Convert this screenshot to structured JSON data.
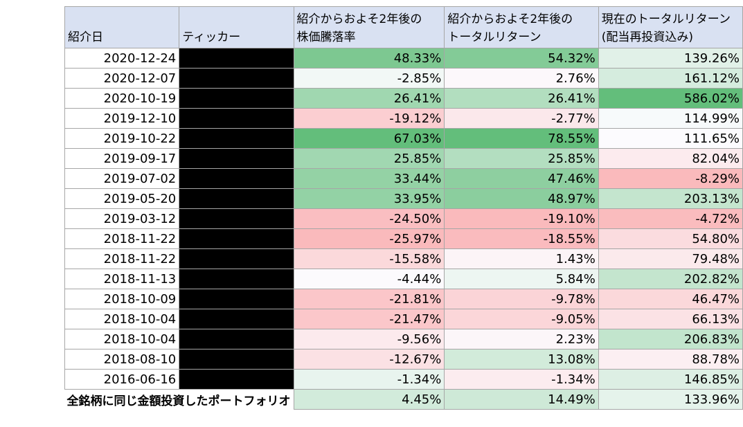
{
  "headers": {
    "date": "紹介日",
    "ticker": "ティッカー",
    "price_change": [
      "紹介からおよそ2年後の",
      "株価騰落率"
    ],
    "total_return": [
      "紹介からおよそ2年後の",
      "トータルリターン"
    ],
    "current_return": [
      "現在のトータルリターン",
      "(配当再投資込み)"
    ]
  },
  "rows": [
    {
      "date": "2020-12-24",
      "price_change": "48.33%",
      "total_return": "54.32%",
      "current_return": "139.26%"
    },
    {
      "date": "2020-12-07",
      "price_change": "-2.85%",
      "total_return": "2.76%",
      "current_return": "161.12%"
    },
    {
      "date": "2020-10-19",
      "price_change": "26.41%",
      "total_return": "26.41%",
      "current_return": "586.02%"
    },
    {
      "date": "2019-12-10",
      "price_change": "-19.12%",
      "total_return": "-2.77%",
      "current_return": "114.99%"
    },
    {
      "date": "2019-10-22",
      "price_change": "67.03%",
      "total_return": "78.55%",
      "current_return": "111.65%"
    },
    {
      "date": "2019-09-17",
      "price_change": "25.85%",
      "total_return": "25.85%",
      "current_return": "82.04%"
    },
    {
      "date": "2019-07-02",
      "price_change": "33.44%",
      "total_return": "47.46%",
      "current_return": "-8.29%"
    },
    {
      "date": "2019-05-20",
      "price_change": "33.95%",
      "total_return": "48.97%",
      "current_return": "203.13%"
    },
    {
      "date": "2019-03-12",
      "price_change": "-24.50%",
      "total_return": "-19.10%",
      "current_return": "-4.72%"
    },
    {
      "date": "2018-11-22",
      "price_change": "-25.97%",
      "total_return": "-18.55%",
      "current_return": "54.80%"
    },
    {
      "date": "2018-11-22",
      "price_change": "-15.58%",
      "total_return": "1.43%",
      "current_return": "79.48%"
    },
    {
      "date": "2018-11-13",
      "price_change": "-4.44%",
      "total_return": "5.84%",
      "current_return": "202.82%"
    },
    {
      "date": "2018-10-09",
      "price_change": "-21.81%",
      "total_return": "-9.78%",
      "current_return": "46.47%"
    },
    {
      "date": "2018-10-04",
      "price_change": "-21.47%",
      "total_return": "-9.05%",
      "current_return": "66.13%"
    },
    {
      "date": "2018-10-04",
      "price_change": "-9.56%",
      "total_return": "2.23%",
      "current_return": "206.83%"
    },
    {
      "date": "2018-08-10",
      "price_change": "-12.67%",
      "total_return": "13.08%",
      "current_return": "88.78%"
    },
    {
      "date": "2016-06-16",
      "price_change": "-1.34%",
      "total_return": "-1.34%",
      "current_return": "146.85%"
    }
  ],
  "total": {
    "label": "全銘柄に同じ金額投資したポートフォリオ",
    "price_change": "4.45%",
    "total_return": "14.49%",
    "current_return": "133.96%"
  },
  "colors": {
    "header_bg": "#d9e1f2",
    "redacted": "#000000",
    "scale_green": "#63be7b",
    "scale_red": "#f8696b",
    "scale_white": "#fcfcff"
  }
}
